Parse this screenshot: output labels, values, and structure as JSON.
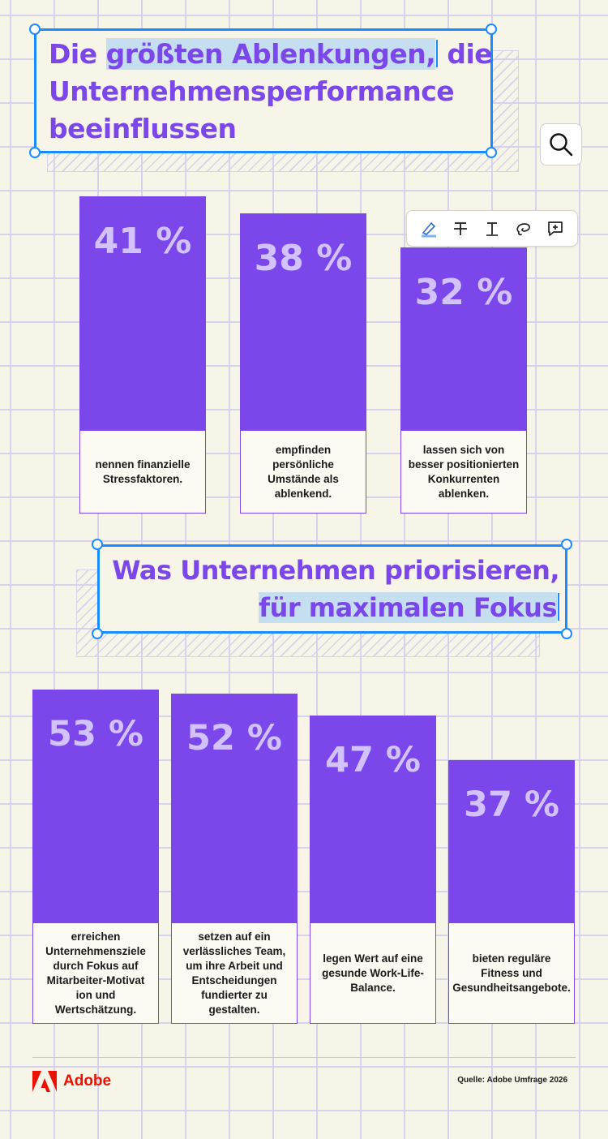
{
  "section1": {
    "title_pre": "Die ",
    "title_highlight": "größten Ablenkungen,",
    "title_post": " die",
    "title_line2": "Unternehmensperformance",
    "title_line3": "beeinflussen"
  },
  "section2": {
    "title_line1": "Was Unternehmen priorisieren,",
    "title_line2": "für maximalen Fokus"
  },
  "chart_data": [
    {
      "type": "bar",
      "unit": "%",
      "value_labels": [
        "41 %",
        "38 %",
        "32 %"
      ],
      "values": [
        41,
        38,
        32
      ],
      "categories": [
        "nennen finanzielle Stressfaktoren.",
        "empfinden persönliche Umstände als ablenkend.",
        "lassen sich von besser positionierten Konkurrenten ablenken."
      ],
      "ylim": [
        0,
        41
      ]
    },
    {
      "type": "bar",
      "unit": "%",
      "value_labels": [
        "53 %",
        "52 %",
        "47 %",
        "37 %"
      ],
      "values": [
        53,
        52,
        47,
        37
      ],
      "categories": [
        "erreichen Unternehmensziele durch Fokus auf Mitarbeiter-Motivat ion und Wertschätzung.",
        "setzen auf ein verlässliches Team, um ihre Arbeit und Entscheidungen fundierter zu gestalten.",
        "legen Wert auf eine gesunde Work-Life-Balance.",
        "bieten reguläre Fitness und Gesundheitsangebote."
      ],
      "ylim": [
        0,
        53
      ]
    }
  ],
  "colors": {
    "bar": "#7b47eb",
    "value_text": "#d2c3ff",
    "selection": "#1a8cff",
    "highlight": "#c5dff0",
    "brand": "#eb1000"
  },
  "icons": {
    "search": "search-icon",
    "toolbar": [
      "highlighter-icon",
      "strikethrough-icon",
      "text-cursor-icon",
      "lasso-icon",
      "add-comment-icon"
    ]
  },
  "footer": {
    "logo_text": "Adobe",
    "source": "Quelle: Adobe Umfrage 2026"
  }
}
